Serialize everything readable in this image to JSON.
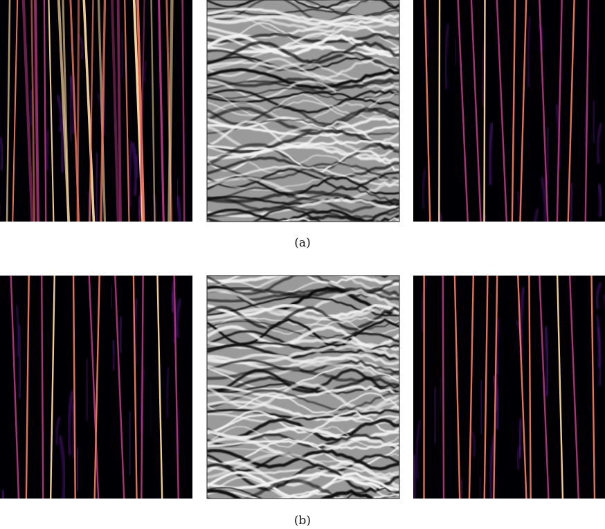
{
  "rows": [
    {
      "caption": "(a)"
    },
    {
      "caption": "(b)"
    }
  ]
}
